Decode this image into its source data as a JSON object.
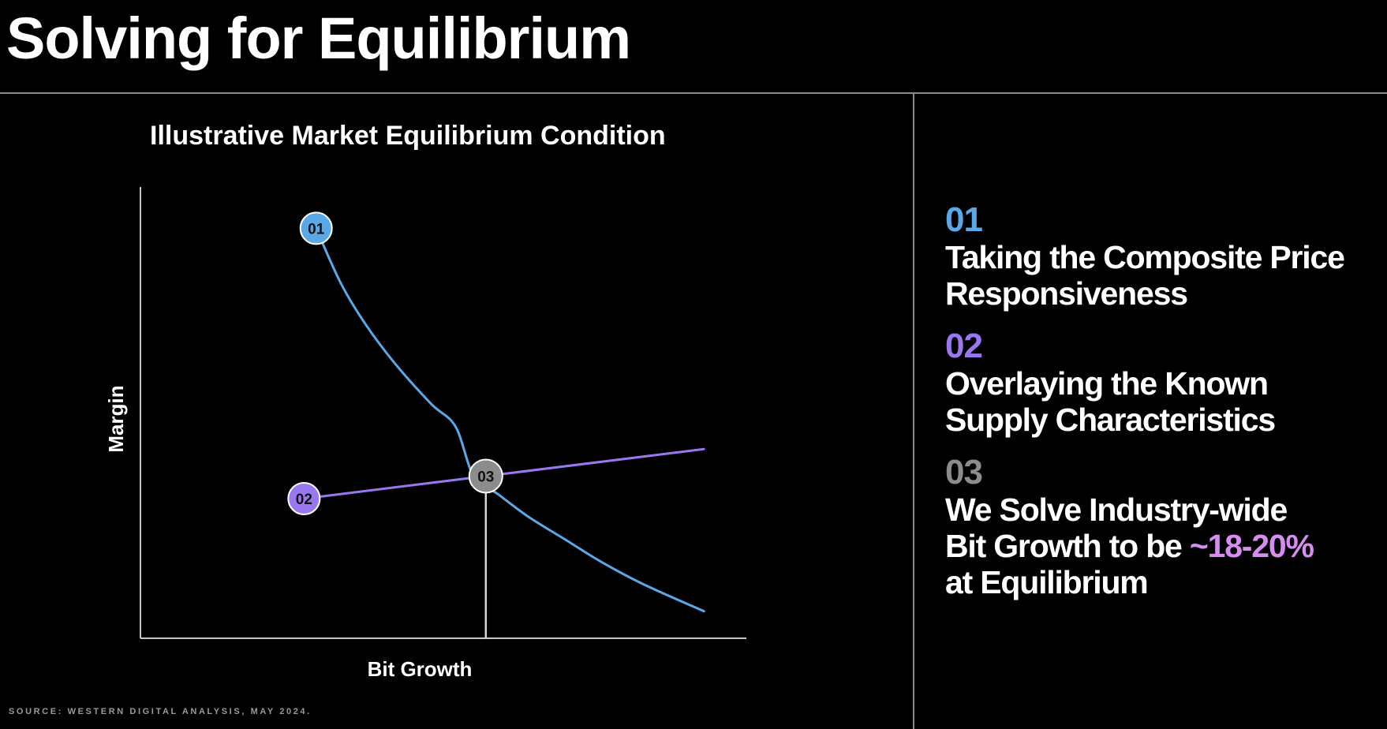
{
  "page": {
    "title": "Solving for Equilibrium",
    "source": "SOURCE: WESTERN DIGITAL ANALYSIS, MAY 2024."
  },
  "colors": {
    "demand_curve": "#5aa8e6",
    "supply_curve": "#9a77f2",
    "equilibrium": "#8c8c8c",
    "highlight": "#d68cf0"
  },
  "chart_data": {
    "type": "line",
    "title": "Illustrative Market Equilibrium Condition",
    "xlabel": "Bit Growth",
    "ylabel": "Margin",
    "xlim": [
      0,
      10
    ],
    "ylim": [
      0,
      10
    ],
    "grid": false,
    "series": [
      {
        "name": "01",
        "color_key": "demand_curve",
        "x": [
          2.9,
          3.3,
          3.7,
          4.2,
          4.8,
          5.2,
          5.5,
          5.9,
          6.4,
          7.0,
          7.6,
          8.3,
          9.3
        ],
        "y": [
          9.1,
          7.9,
          7.0,
          6.1,
          5.2,
          4.7,
          3.6,
          3.2,
          2.7,
          2.2,
          1.7,
          1.2,
          0.6
        ]
      },
      {
        "name": "02",
        "color_key": "supply_curve",
        "x": [
          2.7,
          9.3
        ],
        "y": [
          3.1,
          4.2
        ]
      }
    ],
    "equilibrium": {
      "label": "03",
      "x": 5.7,
      "y": 3.6
    }
  },
  "steps": [
    {
      "num": "01",
      "color_key": "demand_curve",
      "lines": [
        "Taking the Composite Price",
        "Responsiveness"
      ]
    },
    {
      "num": "02",
      "color_key": "supply_curve",
      "lines": [
        "Overlaying the Known",
        "Supply Characteristics"
      ]
    },
    {
      "num": "03",
      "color_key": "equilibrium",
      "line1": "We Solve Industry-wide",
      "line2_pre": "Bit Growth to be ",
      "line2_highlight": "~18-20%",
      "line3": "at Equilibrium"
    }
  ]
}
